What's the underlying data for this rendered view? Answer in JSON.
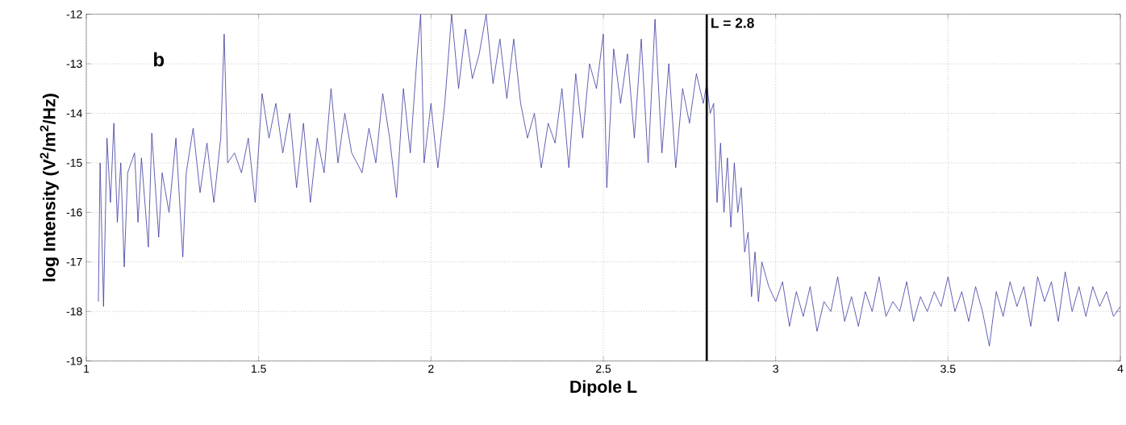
{
  "chart_data": {
    "type": "line",
    "xlabel": "Dipole L",
    "ylabel": "log Intensity (V$^{2}$/m$^{2}$/Hz)",
    "annotations": [
      "b"
    ],
    "xlim": [
      1,
      4
    ],
    "ylim": [
      -19,
      -12
    ],
    "xticks": [
      1,
      1.5,
      2,
      2.5,
      3,
      3.5,
      4
    ],
    "yticks": [
      -19,
      -18,
      -17,
      -16,
      -15,
      -14,
      -13,
      -12
    ],
    "grid": true,
    "marker": "none",
    "line_style": "solid",
    "ref_lines": [
      {
        "axis": "x",
        "value": 2.8,
        "label": "L = 2.8",
        "color": "#000000"
      }
    ],
    "series": [
      {
        "color": "#3a3aa0",
        "x": [
          1.035,
          1.04,
          1.05,
          1.06,
          1.07,
          1.08,
          1.09,
          1.1,
          1.11,
          1.12,
          1.14,
          1.15,
          1.16,
          1.18,
          1.19,
          1.21,
          1.22,
          1.24,
          1.26,
          1.28,
          1.29,
          1.31,
          1.33,
          1.35,
          1.37,
          1.39,
          1.4,
          1.41,
          1.43,
          1.45,
          1.47,
          1.49,
          1.51,
          1.53,
          1.55,
          1.57,
          1.59,
          1.61,
          1.63,
          1.65,
          1.67,
          1.69,
          1.71,
          1.73,
          1.75,
          1.77,
          1.8,
          1.82,
          1.84,
          1.86,
          1.88,
          1.9,
          1.92,
          1.94,
          1.96,
          1.97,
          1.98,
          2.0,
          2.01,
          2.02,
          2.04,
          2.06,
          2.08,
          2.1,
          2.12,
          2.14,
          2.16,
          2.18,
          2.2,
          2.22,
          2.24,
          2.26,
          2.28,
          2.3,
          2.32,
          2.34,
          2.36,
          2.38,
          2.4,
          2.42,
          2.44,
          2.46,
          2.48,
          2.5,
          2.51,
          2.53,
          2.55,
          2.57,
          2.59,
          2.61,
          2.63,
          2.65,
          2.67,
          2.69,
          2.71,
          2.73,
          2.75,
          2.77,
          2.79,
          2.8,
          2.81,
          2.82,
          2.83,
          2.84,
          2.85,
          2.86,
          2.87,
          2.88,
          2.89,
          2.9,
          2.91,
          2.92,
          2.93,
          2.94,
          2.95,
          2.96,
          2.98,
          3.0,
          3.02,
          3.04,
          3.06,
          3.08,
          3.1,
          3.12,
          3.14,
          3.16,
          3.18,
          3.2,
          3.22,
          3.24,
          3.26,
          3.28,
          3.3,
          3.32,
          3.34,
          3.36,
          3.38,
          3.4,
          3.42,
          3.44,
          3.46,
          3.48,
          3.5,
          3.52,
          3.54,
          3.56,
          3.58,
          3.6,
          3.62,
          3.64,
          3.66,
          3.68,
          3.7,
          3.72,
          3.74,
          3.76,
          3.78,
          3.8,
          3.82,
          3.84,
          3.86,
          3.88,
          3.9,
          3.92,
          3.94,
          3.96,
          3.98,
          4.0
        ],
        "values": [
          -17.8,
          -15,
          -17.9,
          -14.5,
          -15.8,
          -14.2,
          -16.2,
          -15,
          -17.1,
          -15.2,
          -14.8,
          -16.2,
          -14.9,
          -16.7,
          -14.4,
          -16.5,
          -15.2,
          -16.0,
          -14.5,
          -16.9,
          -15.2,
          -14.3,
          -15.6,
          -14.6,
          -15.8,
          -14.5,
          -12.4,
          -15.0,
          -14.8,
          -15.2,
          -14.5,
          -15.8,
          -13.6,
          -14.5,
          -13.8,
          -14.8,
          -14.0,
          -15.5,
          -14.2,
          -15.8,
          -14.5,
          -15.2,
          -13.5,
          -15.0,
          -14.0,
          -14.8,
          -15.2,
          -14.3,
          -15.0,
          -13.6,
          -14.5,
          -15.7,
          -13.5,
          -14.8,
          -12.8,
          -12.0,
          -15.0,
          -13.8,
          -14.5,
          -15.1,
          -13.8,
          -12.0,
          -13.5,
          -12.3,
          -13.3,
          -12.8,
          -12.0,
          -13.4,
          -12.5,
          -13.7,
          -12.5,
          -13.8,
          -14.5,
          -14.0,
          -15.1,
          -14.2,
          -14.6,
          -13.5,
          -15.1,
          -13.2,
          -14.5,
          -13.0,
          -13.5,
          -12.4,
          -15.5,
          -12.7,
          -13.8,
          -12.8,
          -14.5,
          -12.5,
          -15.0,
          -12.1,
          -14.8,
          -13.0,
          -15.1,
          -13.5,
          -14.2,
          -13.2,
          -13.8,
          -13.4,
          -14.0,
          -13.8,
          -15.8,
          -14.6,
          -16.0,
          -14.9,
          -16.3,
          -15.0,
          -16.0,
          -15.5,
          -16.8,
          -16.4,
          -17.7,
          -16.8,
          -17.8,
          -17.0,
          -17.5,
          -17.8,
          -17.4,
          -18.3,
          -17.6,
          -18.1,
          -17.5,
          -18.4,
          -17.8,
          -18.0,
          -17.3,
          -18.2,
          -17.7,
          -18.3,
          -17.6,
          -18.0,
          -17.3,
          -18.1,
          -17.8,
          -18.0,
          -17.4,
          -18.2,
          -17.7,
          -18.0,
          -17.6,
          -17.9,
          -17.3,
          -18.0,
          -17.6,
          -18.2,
          -17.5,
          -18.0,
          -18.7,
          -17.6,
          -18.1,
          -17.4,
          -17.9,
          -17.5,
          -18.3,
          -17.3,
          -17.8,
          -17.4,
          -18.2,
          -17.2,
          -18.0,
          -17.5,
          -18.1,
          -17.5,
          -17.9,
          -17.6,
          -18.1,
          -17.9
        ]
      }
    ]
  }
}
